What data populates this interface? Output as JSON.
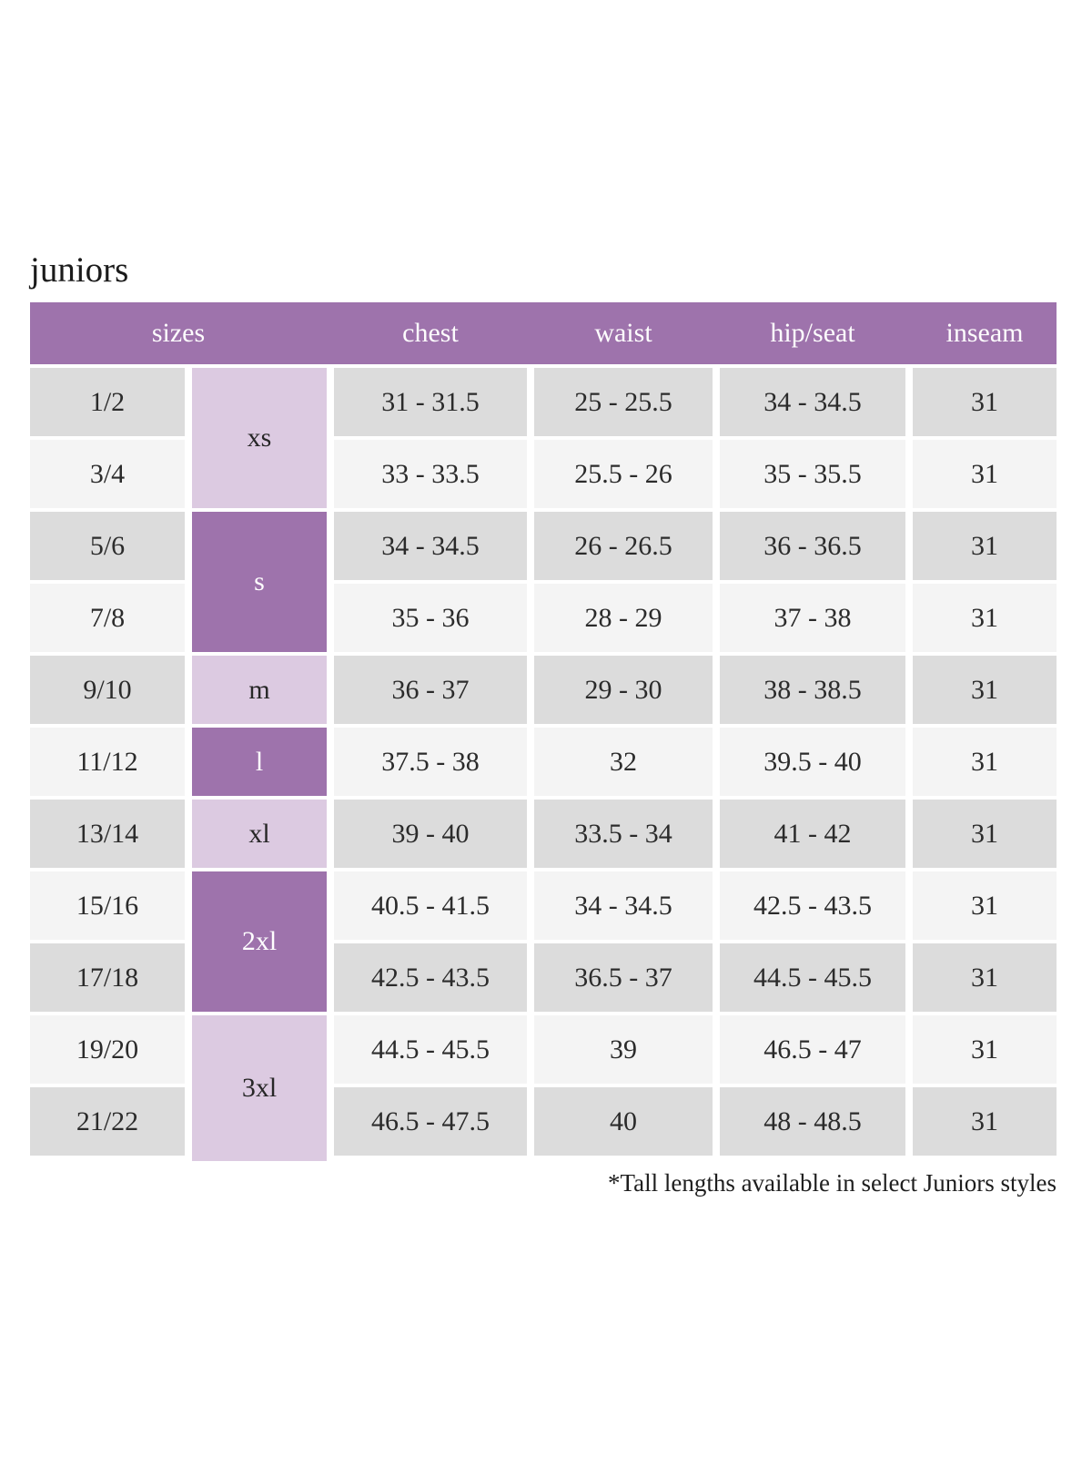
{
  "page": {
    "title": "juniors",
    "footnote": "*Tall lengths available in select Juniors styles"
  },
  "colors": {
    "header_bg": "#9e73ac",
    "group_dark_purple": "#9e73ac",
    "group_light_lavender": "#dccae1",
    "row_gray": "#dcdcdc",
    "row_light": "#f4f4f4"
  },
  "table": {
    "headers": [
      "sizes",
      "chest",
      "waist",
      "hip/seat",
      "inseam"
    ],
    "groups": [
      {
        "label": "xs",
        "sizes": [
          "1/2",
          "3/4"
        ]
      },
      {
        "label": "s",
        "sizes": [
          "5/6",
          "7/8"
        ]
      },
      {
        "label": "m",
        "sizes": [
          "9/10"
        ]
      },
      {
        "label": "l",
        "sizes": [
          "11/12"
        ]
      },
      {
        "label": "xl",
        "sizes": [
          "13/14"
        ]
      },
      {
        "label": "2xl",
        "sizes": [
          "15/16",
          "17/18"
        ]
      },
      {
        "label": "3xl",
        "sizes": [
          "19/20",
          "21/22"
        ]
      }
    ],
    "rows": [
      {
        "size": "1/2",
        "chest": "31 - 31.5",
        "waist": "25 - 25.5",
        "hip_seat": "34 - 34.5",
        "inseam": "31"
      },
      {
        "size": "3/4",
        "chest": "33 - 33.5",
        "waist": "25.5 - 26",
        "hip_seat": "35 - 35.5",
        "inseam": "31"
      },
      {
        "size": "5/6",
        "chest": "34 - 34.5",
        "waist": "26 - 26.5",
        "hip_seat": "36 - 36.5",
        "inseam": "31"
      },
      {
        "size": "7/8",
        "chest": "35 - 36",
        "waist": "28 - 29",
        "hip_seat": "37 - 38",
        "inseam": "31"
      },
      {
        "size": "9/10",
        "chest": "36 - 37",
        "waist": "29 - 30",
        "hip_seat": "38 - 38.5",
        "inseam": "31"
      },
      {
        "size": "11/12",
        "chest": "37.5 - 38",
        "waist": "32",
        "hip_seat": "39.5 - 40",
        "inseam": "31"
      },
      {
        "size": "13/14",
        "chest": "39 - 40",
        "waist": "33.5 - 34",
        "hip_seat": "41 - 42",
        "inseam": "31"
      },
      {
        "size": "15/16",
        "chest": "40.5 - 41.5",
        "waist": "34 - 34.5",
        "hip_seat": "42.5 - 43.5",
        "inseam": "31"
      },
      {
        "size": "17/18",
        "chest": "42.5 - 43.5",
        "waist": "36.5 - 37",
        "hip_seat": "44.5 - 45.5",
        "inseam": "31"
      },
      {
        "size": "19/20",
        "chest": "44.5 - 45.5",
        "waist": "39",
        "hip_seat": "46.5 - 47",
        "inseam": "31"
      },
      {
        "size": "21/22",
        "chest": "46.5 - 47.5",
        "waist": "40",
        "hip_seat": "48 - 48.5",
        "inseam": "31"
      }
    ]
  }
}
